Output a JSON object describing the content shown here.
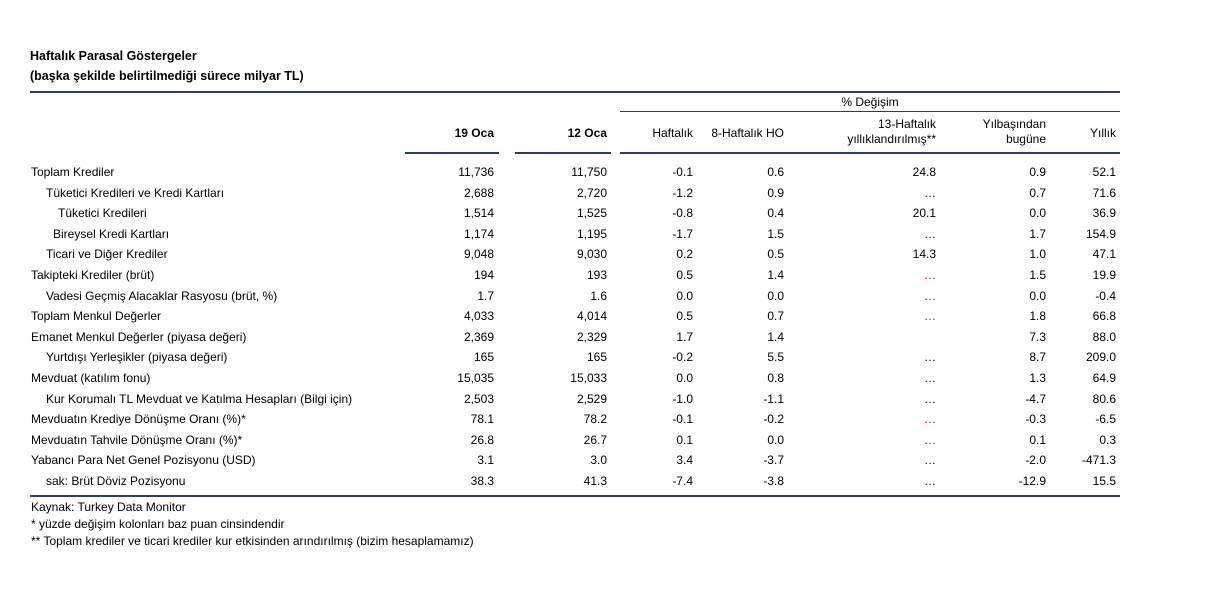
{
  "title_line1": "Haftalık Parasal Göstergeler",
  "title_line2": "(başka şekilde belirtilmediği sürece milyar TL)",
  "group_header": "% Değişim",
  "columns": {
    "c1": "19 Oca",
    "c2": "12 Oca",
    "weekly": "Haftalık",
    "ho8": "8-Haftalık HO",
    "h13_line1": "13-Haftalık",
    "h13_line2": "yıllıklandırılmış**",
    "ytd_line1": "Yılbaşından",
    "ytd_line2": "bugüne",
    "annual": "Yıllık"
  },
  "rows": [
    {
      "label": "Toplam Krediler",
      "indent": 0,
      "c1": "11,736",
      "c2": "11,750",
      "w": "-0.1",
      "h8": "0.6",
      "h13": "24.8",
      "ytd": "0.9",
      "ann": "52.1"
    },
    {
      "label": "Tüketici Kredileri ve Kredi Kartları",
      "indent": 1,
      "c1": "2,688",
      "c2": "2,720",
      "w": "-1.2",
      "h8": "0.9",
      "h13": "…",
      "ytd": "0.7",
      "ann": "71.6"
    },
    {
      "label": "Tüketici Kredileri",
      "indent": 2,
      "c1": "1,514",
      "c2": "1,525",
      "w": "-0.8",
      "h8": "0.4",
      "h13": "20.1",
      "ytd": "0.0",
      "ann": "36.9"
    },
    {
      "label": "Bireysel Kredi Kartları",
      "indent": 2,
      "c1": "1,174",
      "c2": "1,195",
      "w": "-1.7",
      "h8": "1.5",
      "h13": "…",
      "ytd": "1.7",
      "ann": "154.9"
    },
    {
      "label": "Ticari ve Diğer Krediler",
      "indent": 1,
      "c1": "9,048",
      "c2": "9,030",
      "w": "0.2",
      "h8": "0.5",
      "h13": "14.3",
      "ytd": "1.0",
      "ann": "47.1"
    },
    {
      "label": "Takipteki Krediler (brüt)",
      "indent": 0,
      "c1": "194",
      "c2": "193",
      "w": "0.5",
      "h8": "1.4",
      "h13": "…",
      "ytd": "1.5",
      "ann": "19.9",
      "red": true
    },
    {
      "label": "Vadesi Geçmiş Alacaklar Rasyosu (brüt, %)",
      "indent": 1,
      "c1": "1.7",
      "c2": "1.6",
      "w": "0.0",
      "h8": "0.0",
      "h13": "…",
      "ytd": "0.0",
      "ann": "-0.4",
      "red": true
    },
    {
      "label": "Toplam Menkul Değerler",
      "indent": 0,
      "c1": "4,033",
      "c2": "4,014",
      "w": "0.5",
      "h8": "0.7",
      "h13": "…",
      "ytd": "1.8",
      "ann": "66.8",
      "red": true
    },
    {
      "label": "Emanet Menkul Değerler (piyasa değeri)",
      "indent": 0,
      "c1": "2,369",
      "c2": "2,329",
      "w": "1.7",
      "h8": "1.4",
      "h13": "",
      "ytd": "7.3",
      "ann": "88.0"
    },
    {
      "label": "Yurtdışı Yerleşikler (piyasa değeri)",
      "indent": 1,
      "c1": "165",
      "c2": "165",
      "w": "-0.2",
      "h8": "5.5",
      "h13": "…",
      "ytd": "8.7",
      "ann": "209.0"
    },
    {
      "label": "Mevduat (katılım fonu)",
      "indent": 0,
      "c1": "15,035",
      "c2": "15,033",
      "w": "0.0",
      "h8": "0.8",
      "h13": "…",
      "ytd": "1.3",
      "ann": "64.9"
    },
    {
      "label": "Kur Korumalı TL Mevduat ve Katılma Hesapları (Bilgi için)",
      "indent": 1,
      "c1": "2,503",
      "c2": "2,529",
      "w": "-1.0",
      "h8": "-1.1",
      "h13": "…",
      "ytd": "-4.7",
      "ann": "80.6"
    },
    {
      "label": "Mevduatın Krediye Dönüşme Oranı (%)*",
      "indent": 0,
      "c1": "78.1",
      "c2": "78.2",
      "w": "-0.1",
      "h8": "-0.2",
      "h13": "…",
      "ytd": "-0.3",
      "ann": "-6.5",
      "red": true
    },
    {
      "label": "Mevduatın Tahvile Dönüşme Oranı (%)*",
      "indent": 0,
      "c1": "26.8",
      "c2": "26.7",
      "w": "0.1",
      "h8": "0.0",
      "h13": "…",
      "ytd": "0.1",
      "ann": "0.3",
      "red": true
    },
    {
      "label": "Yabancı Para Net Genel Pozisyonu (USD)",
      "indent": 0,
      "c1": "3.1",
      "c2": "3.0",
      "w": "3.4",
      "h8": "-3.7",
      "h13": "…",
      "ytd": "-2.0",
      "ann": "-471.3"
    },
    {
      "label": "sak: Brüt Döviz Pozisyonu",
      "indent": 1,
      "c1": "38.3",
      "c2": "41.3",
      "w": "-7.4",
      "h8": "-3.8",
      "h13": "…",
      "ytd": "-12.9",
      "ann": "15.5"
    }
  ],
  "footer": [
    "Kaynak: Turkey Data Monitor",
    "* yüzde değişim kolonları baz puan cinsindendir",
    "** Toplam krediler ve ticari krediler kur etkisinden arındırılmış (bizim hesaplamamız)"
  ]
}
